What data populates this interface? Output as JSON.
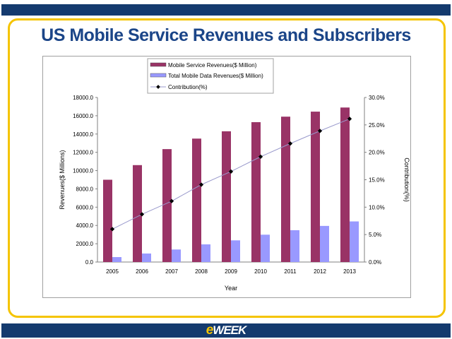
{
  "slide": {
    "title": "US Mobile Service Revenues and Subscribers",
    "logo_text": "eWEEK"
  },
  "colors": {
    "brand_navy": "#143a6e",
    "accent_yellow": "#f5c400",
    "series1": "#993366",
    "series2": "#9999ff",
    "line": "#9999cc"
  },
  "chart_data": {
    "type": "bar",
    "title": "",
    "xlabel": "Year",
    "ylabel": "Revenues($ Millions)",
    "y2label": "Contribution(%)",
    "categories": [
      "2005",
      "2006",
      "2007",
      "2008",
      "2009",
      "2010",
      "2011",
      "2012",
      "2013"
    ],
    "ylim": [
      0,
      18000
    ],
    "y2lim": [
      0,
      30
    ],
    "yticks": [
      "0.0",
      "2000.0",
      "4000.0",
      "6000.0",
      "8000.0",
      "10000.0",
      "12000.0",
      "14000.0",
      "16000.0",
      "18000.0"
    ],
    "y2ticks": [
      "0.0%",
      "5.0%",
      "10.0%",
      "15.0%",
      "20.0%",
      "25.0%",
      "30.0%"
    ],
    "legend_position": "top-center",
    "grid": false,
    "series": [
      {
        "name": "Mobile Service Revenues($ Million)",
        "type": "bar",
        "axis": "left",
        "values": [
          9000,
          10600,
          12350,
          13500,
          14300,
          15300,
          15900,
          16450,
          16900
        ]
      },
      {
        "name": "Total Mobile Data Revenues($ Million)",
        "type": "bar",
        "axis": "left",
        "values": [
          540,
          930,
          1370,
          1930,
          2370,
          2990,
          3480,
          3950,
          4440
        ]
      },
      {
        "name": "Contribution(%)",
        "type": "line",
        "axis": "right",
        "values": [
          6.0,
          8.7,
          11.1,
          14.1,
          16.5,
          19.2,
          21.6,
          23.9,
          26.1
        ]
      }
    ]
  }
}
